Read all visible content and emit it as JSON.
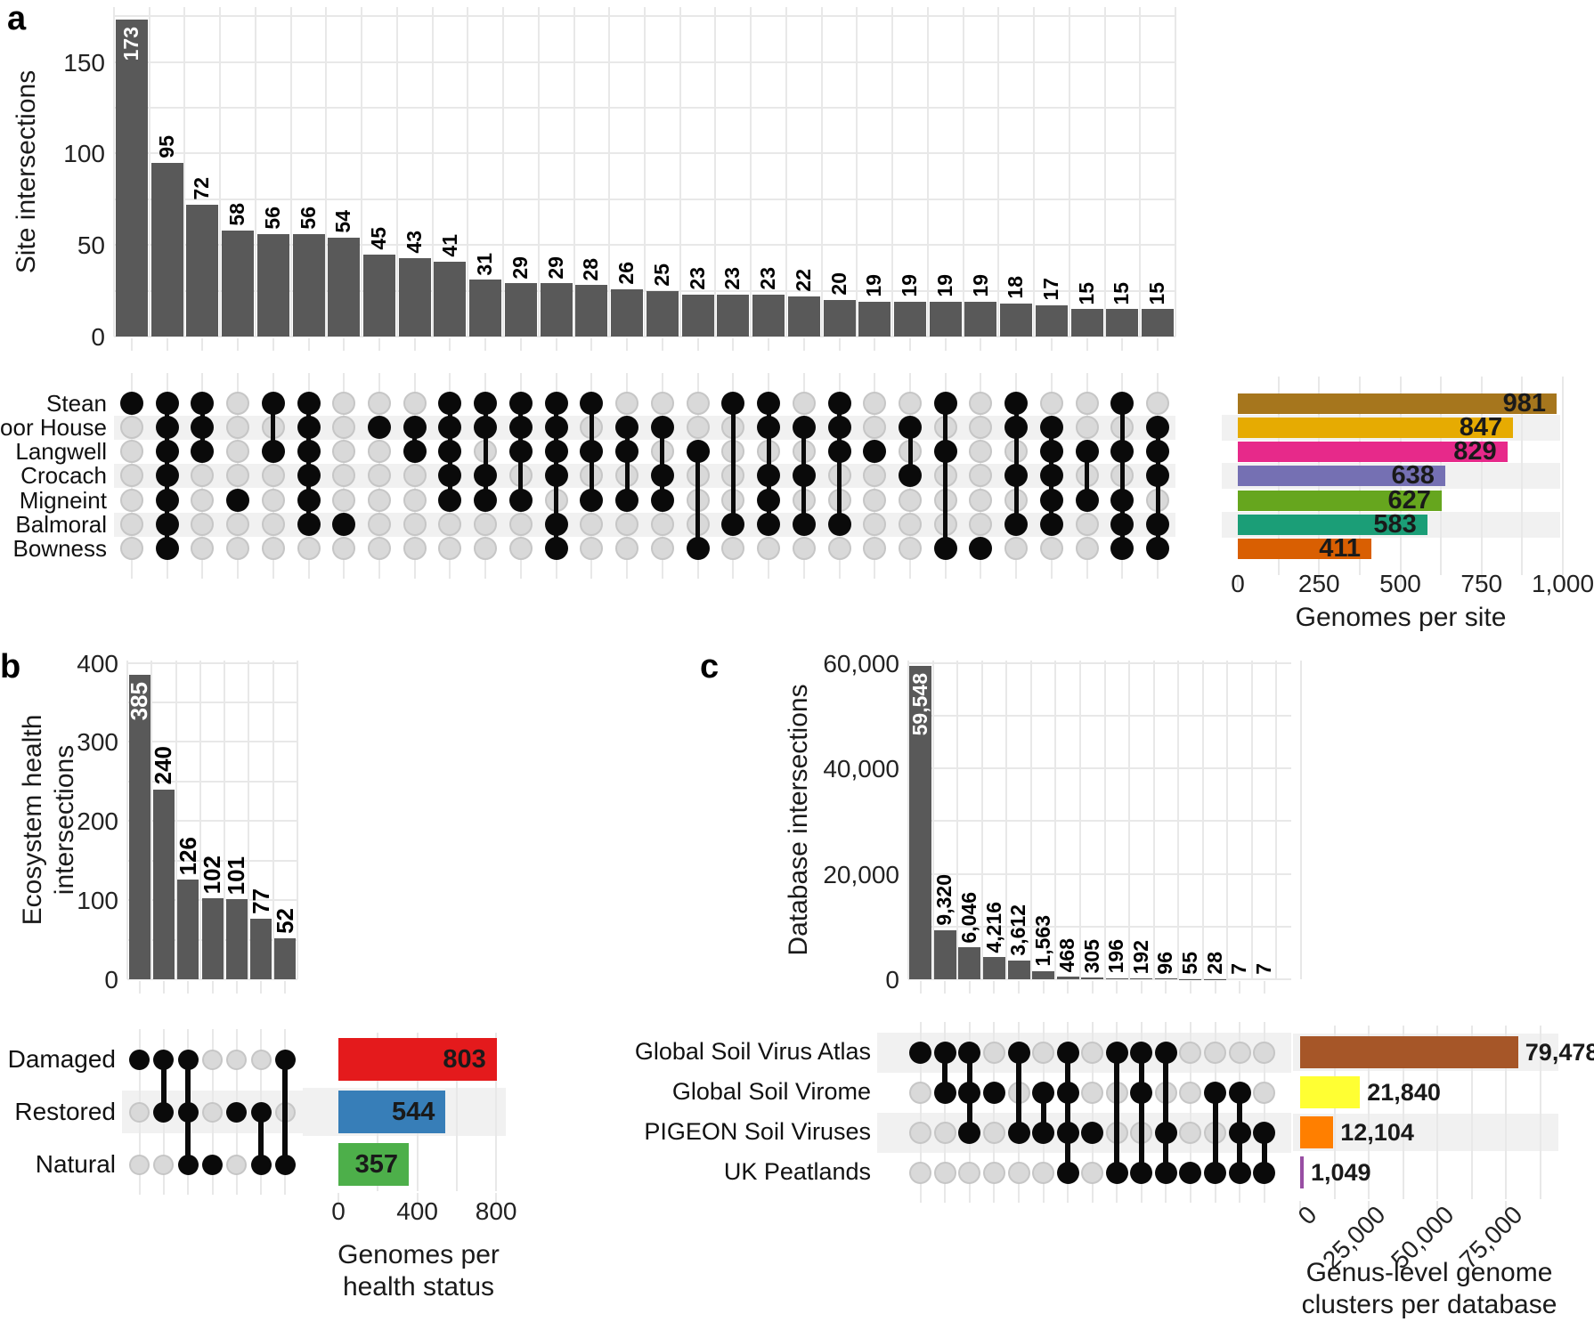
{
  "style": {
    "intersection_bar_color": "#595959",
    "empty_dot_color": "#d9d9d9",
    "empty_dot_border": "#c6c6c6",
    "filled_dot_color": "#0a0a0a",
    "band_color": "#f1f1f1",
    "grid_color": "#e8e8e8",
    "inside_label_color": "#ffffff",
    "text_color": "#1a1a1a"
  },
  "chart_data": [
    {
      "type": "bar",
      "subtype": "upset",
      "panel": "a",
      "intersection_axis": {
        "label": "Site intersections",
        "ticks": [
          0,
          50,
          100,
          150
        ],
        "tick_labels": [
          "0",
          "50",
          "100",
          "150"
        ],
        "max": 180
      },
      "set_axis": {
        "label": "Genomes per site",
        "label_lines": [
          "Genomes per site"
        ],
        "ticks": [
          0,
          250,
          500,
          750,
          1000
        ],
        "tick_labels": [
          "0",
          "250",
          "500",
          "750",
          "1,000"
        ],
        "max": 1030
      },
      "sets": [
        {
          "name": "Stean",
          "size": 981,
          "size_label": "981",
          "color": "#A6761D"
        },
        {
          "name": "Moor House",
          "size": 847,
          "size_label": "847",
          "color": "#E6AB02"
        },
        {
          "name": "Langwell",
          "size": 829,
          "size_label": "829",
          "color": "#E7298A"
        },
        {
          "name": "Crocach",
          "size": 638,
          "size_label": "638",
          "color": "#7570B3"
        },
        {
          "name": "Migneint",
          "size": 627,
          "size_label": "627",
          "color": "#66A61E"
        },
        {
          "name": "Balmoral",
          "size": 583,
          "size_label": "583",
          "color": "#1B9E77"
        },
        {
          "name": "Bowness",
          "size": 411,
          "size_label": "411",
          "color": "#D95F02"
        }
      ],
      "intersections": [
        {
          "size": 173,
          "label": "173",
          "members": [
            "Stean"
          ]
        },
        {
          "size": 95,
          "label": "95",
          "members": [
            "Stean",
            "Moor House",
            "Langwell",
            "Crocach",
            "Migneint",
            "Balmoral",
            "Bowness"
          ]
        },
        {
          "size": 72,
          "label": "72",
          "members": [
            "Stean",
            "Moor House",
            "Langwell"
          ]
        },
        {
          "size": 58,
          "label": "58",
          "members": [
            "Migneint"
          ]
        },
        {
          "size": 56,
          "label": "56",
          "members": [
            "Stean",
            "Langwell"
          ]
        },
        {
          "size": 56,
          "label": "56",
          "members": [
            "Stean",
            "Moor House",
            "Langwell",
            "Crocach",
            "Migneint",
            "Balmoral"
          ]
        },
        {
          "size": 54,
          "label": "54",
          "members": [
            "Balmoral"
          ]
        },
        {
          "size": 45,
          "label": "45",
          "members": [
            "Moor House"
          ]
        },
        {
          "size": 43,
          "label": "43",
          "members": [
            "Moor House",
            "Langwell"
          ]
        },
        {
          "size": 41,
          "label": "41",
          "members": [
            "Stean",
            "Moor House",
            "Langwell",
            "Crocach",
            "Migneint"
          ]
        },
        {
          "size": 31,
          "label": "31",
          "members": [
            "Stean",
            "Moor House",
            "Crocach",
            "Migneint"
          ]
        },
        {
          "size": 29,
          "label": "29",
          "members": [
            "Stean",
            "Moor House",
            "Langwell",
            "Migneint"
          ]
        },
        {
          "size": 29,
          "label": "29",
          "members": [
            "Stean",
            "Moor House",
            "Langwell",
            "Crocach",
            "Balmoral",
            "Bowness"
          ]
        },
        {
          "size": 28,
          "label": "28",
          "members": [
            "Stean",
            "Langwell",
            "Migneint"
          ]
        },
        {
          "size": 26,
          "label": "26",
          "members": [
            "Moor House",
            "Langwell",
            "Migneint"
          ]
        },
        {
          "size": 25,
          "label": "25",
          "members": [
            "Moor House",
            "Crocach",
            "Migneint"
          ]
        },
        {
          "size": 23,
          "label": "23",
          "members": [
            "Langwell",
            "Bowness"
          ]
        },
        {
          "size": 23,
          "label": "23",
          "members": [
            "Stean",
            "Balmoral"
          ]
        },
        {
          "size": 23,
          "label": "23",
          "members": [
            "Stean",
            "Moor House",
            "Crocach",
            "Migneint",
            "Balmoral"
          ]
        },
        {
          "size": 22,
          "label": "22",
          "members": [
            "Moor House",
            "Crocach",
            "Balmoral"
          ]
        },
        {
          "size": 20,
          "label": "20",
          "members": [
            "Stean",
            "Moor House",
            "Langwell",
            "Balmoral"
          ]
        },
        {
          "size": 19,
          "label": "19",
          "members": [
            "Langwell"
          ]
        },
        {
          "size": 19,
          "label": "19",
          "members": [
            "Moor House",
            "Crocach"
          ]
        },
        {
          "size": 19,
          "label": "19",
          "members": [
            "Stean",
            "Langwell",
            "Bowness"
          ]
        },
        {
          "size": 19,
          "label": "19",
          "members": [
            "Bowness"
          ]
        },
        {
          "size": 18,
          "label": "18",
          "members": [
            "Stean",
            "Moor House",
            "Crocach",
            "Balmoral"
          ]
        },
        {
          "size": 17,
          "label": "17",
          "members": [
            "Moor House",
            "Langwell",
            "Crocach",
            "Migneint",
            "Balmoral"
          ]
        },
        {
          "size": 15,
          "label": "15",
          "members": [
            "Langwell",
            "Migneint"
          ]
        },
        {
          "size": 15,
          "label": "15",
          "members": [
            "Stean",
            "Langwell",
            "Migneint",
            "Balmoral",
            "Bowness"
          ]
        },
        {
          "size": 15,
          "label": "15",
          "members": [
            "Moor House",
            "Langwell",
            "Crocach",
            "Balmoral",
            "Bowness"
          ]
        }
      ]
    },
    {
      "type": "bar",
      "subtype": "upset",
      "panel": "b",
      "intersection_axis": {
        "label": "Ecosystem health intersections",
        "label_lines": [
          "Ecosystem health",
          "intersections"
        ],
        "ticks": [
          0,
          100,
          200,
          300,
          400
        ],
        "tick_labels": [
          "0",
          "100",
          "200",
          "300",
          "400"
        ],
        "max": 403
      },
      "set_axis": {
        "label": "Genomes per health status",
        "label_lines": [
          "Genomes per",
          "health status"
        ],
        "ticks": [
          0,
          400,
          800
        ],
        "tick_labels": [
          "0",
          "400",
          "800"
        ],
        "max": 835
      },
      "sets": [
        {
          "name": "Damaged",
          "size": 803,
          "size_label": "803",
          "color": "#E41A1C"
        },
        {
          "name": "Restored",
          "size": 544,
          "size_label": "544",
          "color": "#377EB8"
        },
        {
          "name": "Natural",
          "size": 357,
          "size_label": "357",
          "color": "#4DAF4A"
        }
      ],
      "intersections": [
        {
          "size": 385,
          "label": "385",
          "members": [
            "Damaged"
          ]
        },
        {
          "size": 240,
          "label": "240",
          "members": [
            "Damaged",
            "Restored"
          ]
        },
        {
          "size": 126,
          "label": "126",
          "members": [
            "Damaged",
            "Restored",
            "Natural"
          ]
        },
        {
          "size": 102,
          "label": "102",
          "members": [
            "Natural"
          ]
        },
        {
          "size": 101,
          "label": "101",
          "members": [
            "Restored"
          ]
        },
        {
          "size": 77,
          "label": "77",
          "members": [
            "Restored",
            "Natural"
          ]
        },
        {
          "size": 52,
          "label": "52",
          "members": [
            "Damaged",
            "Natural"
          ]
        }
      ]
    },
    {
      "type": "bar",
      "subtype": "upset",
      "panel": "c",
      "intersection_axis": {
        "label": "Database intersections",
        "ticks": [
          0,
          20000,
          40000,
          60000
        ],
        "tick_labels": [
          "0",
          "20,000",
          "40,000",
          "60,000"
        ],
        "max": 60500
      },
      "set_axis": {
        "label": "Genus-level genome clusters per database",
        "label_lines": [
          "Genus-level genome",
          "clusters per database"
        ],
        "ticks": [
          0,
          25000,
          50000,
          75000
        ],
        "tick_labels": [
          "0",
          "25,000",
          "50,000",
          "75,000"
        ],
        "max": 94000
      },
      "sets": [
        {
          "name": "Global Soil Virus Atlas",
          "size": 79478,
          "size_label": "79,478",
          "color": "#A65628"
        },
        {
          "name": "Global Soil Virome",
          "size": 21840,
          "size_label": "21,840",
          "color": "#FFFF33"
        },
        {
          "name": "PIGEON Soil Viruses",
          "size": 12104,
          "size_label": "12,104",
          "color": "#FF7F00"
        },
        {
          "name": "UK Peatlands",
          "size": 1049,
          "size_label": "1,049",
          "color": "#984EA3"
        }
      ],
      "intersections": [
        {
          "size": 59548,
          "label": "59,548",
          "members": [
            "Global Soil Virus Atlas"
          ]
        },
        {
          "size": 9320,
          "label": "9,320",
          "members": [
            "Global Soil Virus Atlas",
            "Global Soil Virome"
          ]
        },
        {
          "size": 6046,
          "label": "6,046",
          "members": [
            "Global Soil Virus Atlas",
            "Global Soil Virome",
            "PIGEON Soil Viruses"
          ]
        },
        {
          "size": 4216,
          "label": "4,216",
          "members": [
            "Global Soil Virome"
          ]
        },
        {
          "size": 3612,
          "label": "3,612",
          "members": [
            "Global Soil Virus Atlas",
            "PIGEON Soil Viruses"
          ]
        },
        {
          "size": 1563,
          "label": "1,563",
          "members": [
            "Global Soil Virome",
            "PIGEON Soil Viruses"
          ]
        },
        {
          "size": 468,
          "label": "468",
          "members": [
            "Global Soil Virus Atlas",
            "Global Soil Virome",
            "PIGEON Soil Viruses",
            "UK Peatlands"
          ]
        },
        {
          "size": 305,
          "label": "305",
          "members": [
            "PIGEON Soil Viruses"
          ]
        },
        {
          "size": 196,
          "label": "196",
          "members": [
            "Global Soil Virus Atlas",
            "UK Peatlands"
          ]
        },
        {
          "size": 192,
          "label": "192",
          "members": [
            "Global Soil Virus Atlas",
            "Global Soil Virome",
            "UK Peatlands"
          ]
        },
        {
          "size": 96,
          "label": "96",
          "members": [
            "Global Soil Virus Atlas",
            "PIGEON Soil Viruses",
            "UK Peatlands"
          ]
        },
        {
          "size": 55,
          "label": "55",
          "members": [
            "UK Peatlands"
          ]
        },
        {
          "size": 28,
          "label": "28",
          "members": [
            "Global Soil Virome",
            "UK Peatlands"
          ]
        },
        {
          "size": 7,
          "label": "7",
          "members": [
            "Global Soil Virome",
            "PIGEON Soil Viruses",
            "UK Peatlands"
          ]
        },
        {
          "size": 7,
          "label": "7",
          "members": [
            "PIGEON Soil Viruses",
            "UK Peatlands"
          ]
        }
      ]
    }
  ]
}
